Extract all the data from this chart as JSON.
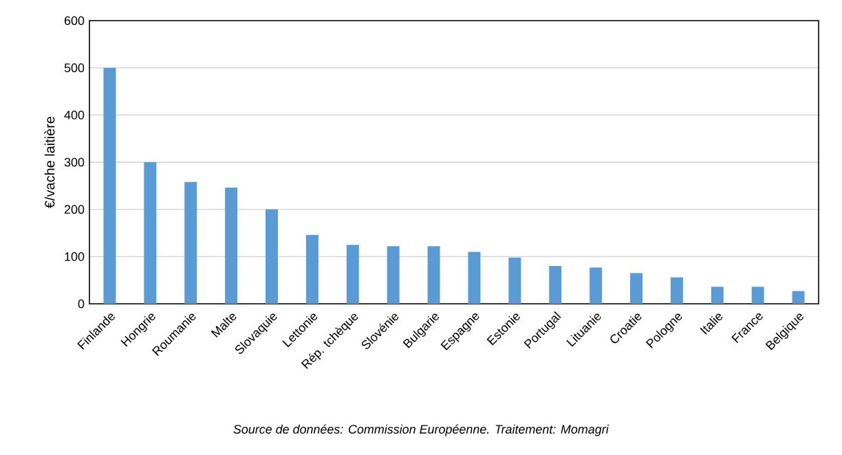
{
  "chart_data": {
    "type": "bar",
    "ylabel": "€/vache laitière",
    "categories": [
      "Finlande",
      "Hongrie",
      "Roumanie",
      "Malte",
      "Slovaquie",
      "Lettonie",
      "Rép. tchèque",
      "Slovénie",
      "Bulgarie",
      "Espagne",
      "Estonie",
      "Portugal",
      "Lituanie",
      "Croatie",
      "Pologne",
      "Italie",
      "France",
      "Belgique"
    ],
    "values": [
      500,
      300,
      258,
      246,
      200,
      146,
      125,
      122,
      122,
      110,
      98,
      80,
      77,
      65,
      56,
      36,
      36,
      27
    ],
    "color": "#5b9bd5",
    "ylim": [
      0,
      600
    ],
    "yticks": [
      0,
      100,
      200,
      300,
      400,
      500,
      600
    ],
    "grid": "y",
    "annotations": [
      "*Source de données: Commission Européenne. Traitement: Momagri*"
    ]
  }
}
